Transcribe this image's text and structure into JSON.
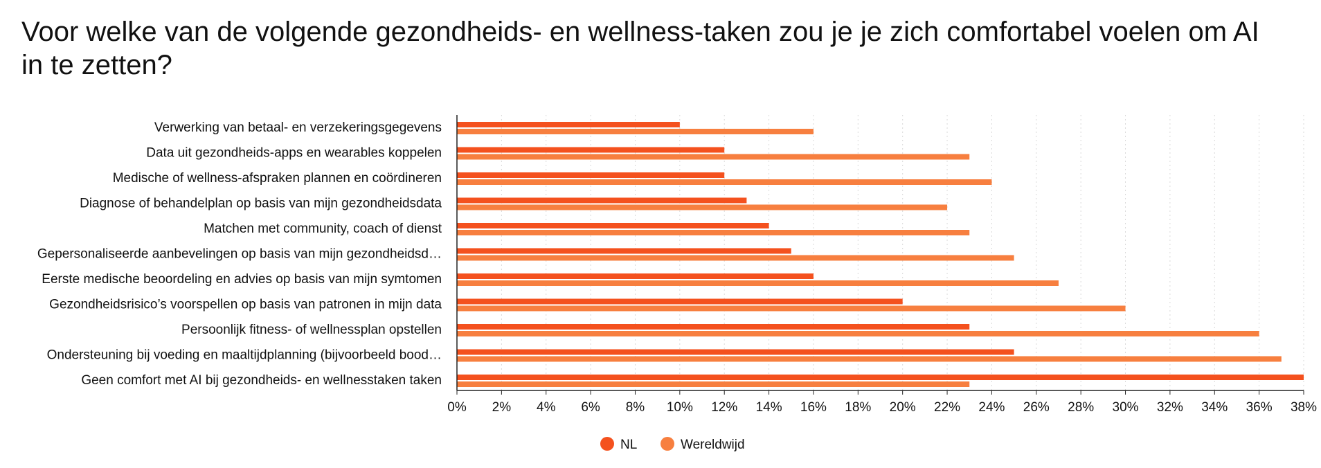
{
  "chart_data": {
    "type": "bar",
    "orientation": "horizontal",
    "title": "Voor welke van de volgende gezondheids- en wellness-taken zou je je zich comfortabel voelen om AI in te zetten?",
    "categories": [
      "Verwerking van betaal- en verzekeringsgegevens",
      "Data uit gezondheids-apps en wearables koppelen",
      "Medische of wellness-afspraken plannen en coördineren",
      "Diagnose of behandelplan op basis van mijn gezondheidsdata",
      "Matchen met community, coach of dienst",
      "Gepersonaliseerde aanbevelingen op basis van mijn gezondheidsd…",
      "Eerste medische beoordeling en advies op basis van mijn symtomen",
      "Gezondheidsrisico’s voorspellen op basis van patronen in mijn data",
      "Persoonlijk fitness- of wellnessplan opstellen",
      "Ondersteuning bij voeding en maaltijdplanning (bijvoorbeeld bood…",
      "Geen comfort met AI bij gezondheids- en wellnesstaken taken"
    ],
    "series": [
      {
        "name": "NL",
        "color": "#f4511e",
        "values": [
          10,
          12,
          12,
          13,
          14,
          15,
          16,
          20,
          23,
          25,
          38
        ]
      },
      {
        "name": "Wereldwijd",
        "color": "#f77f3f",
        "values": [
          16,
          23,
          24,
          22,
          23,
          25,
          27,
          30,
          36,
          37,
          23
        ]
      }
    ],
    "xlim": [
      0,
      38
    ],
    "xticks": [
      "0%",
      "2%",
      "4%",
      "6%",
      "8%",
      "10%",
      "12%",
      "14%",
      "16%",
      "18%",
      "20%",
      "22%",
      "24%",
      "26%",
      "28%",
      "30%",
      "32%",
      "34%",
      "36%",
      "38%"
    ],
    "grid": true,
    "legend_position": "bottom"
  }
}
